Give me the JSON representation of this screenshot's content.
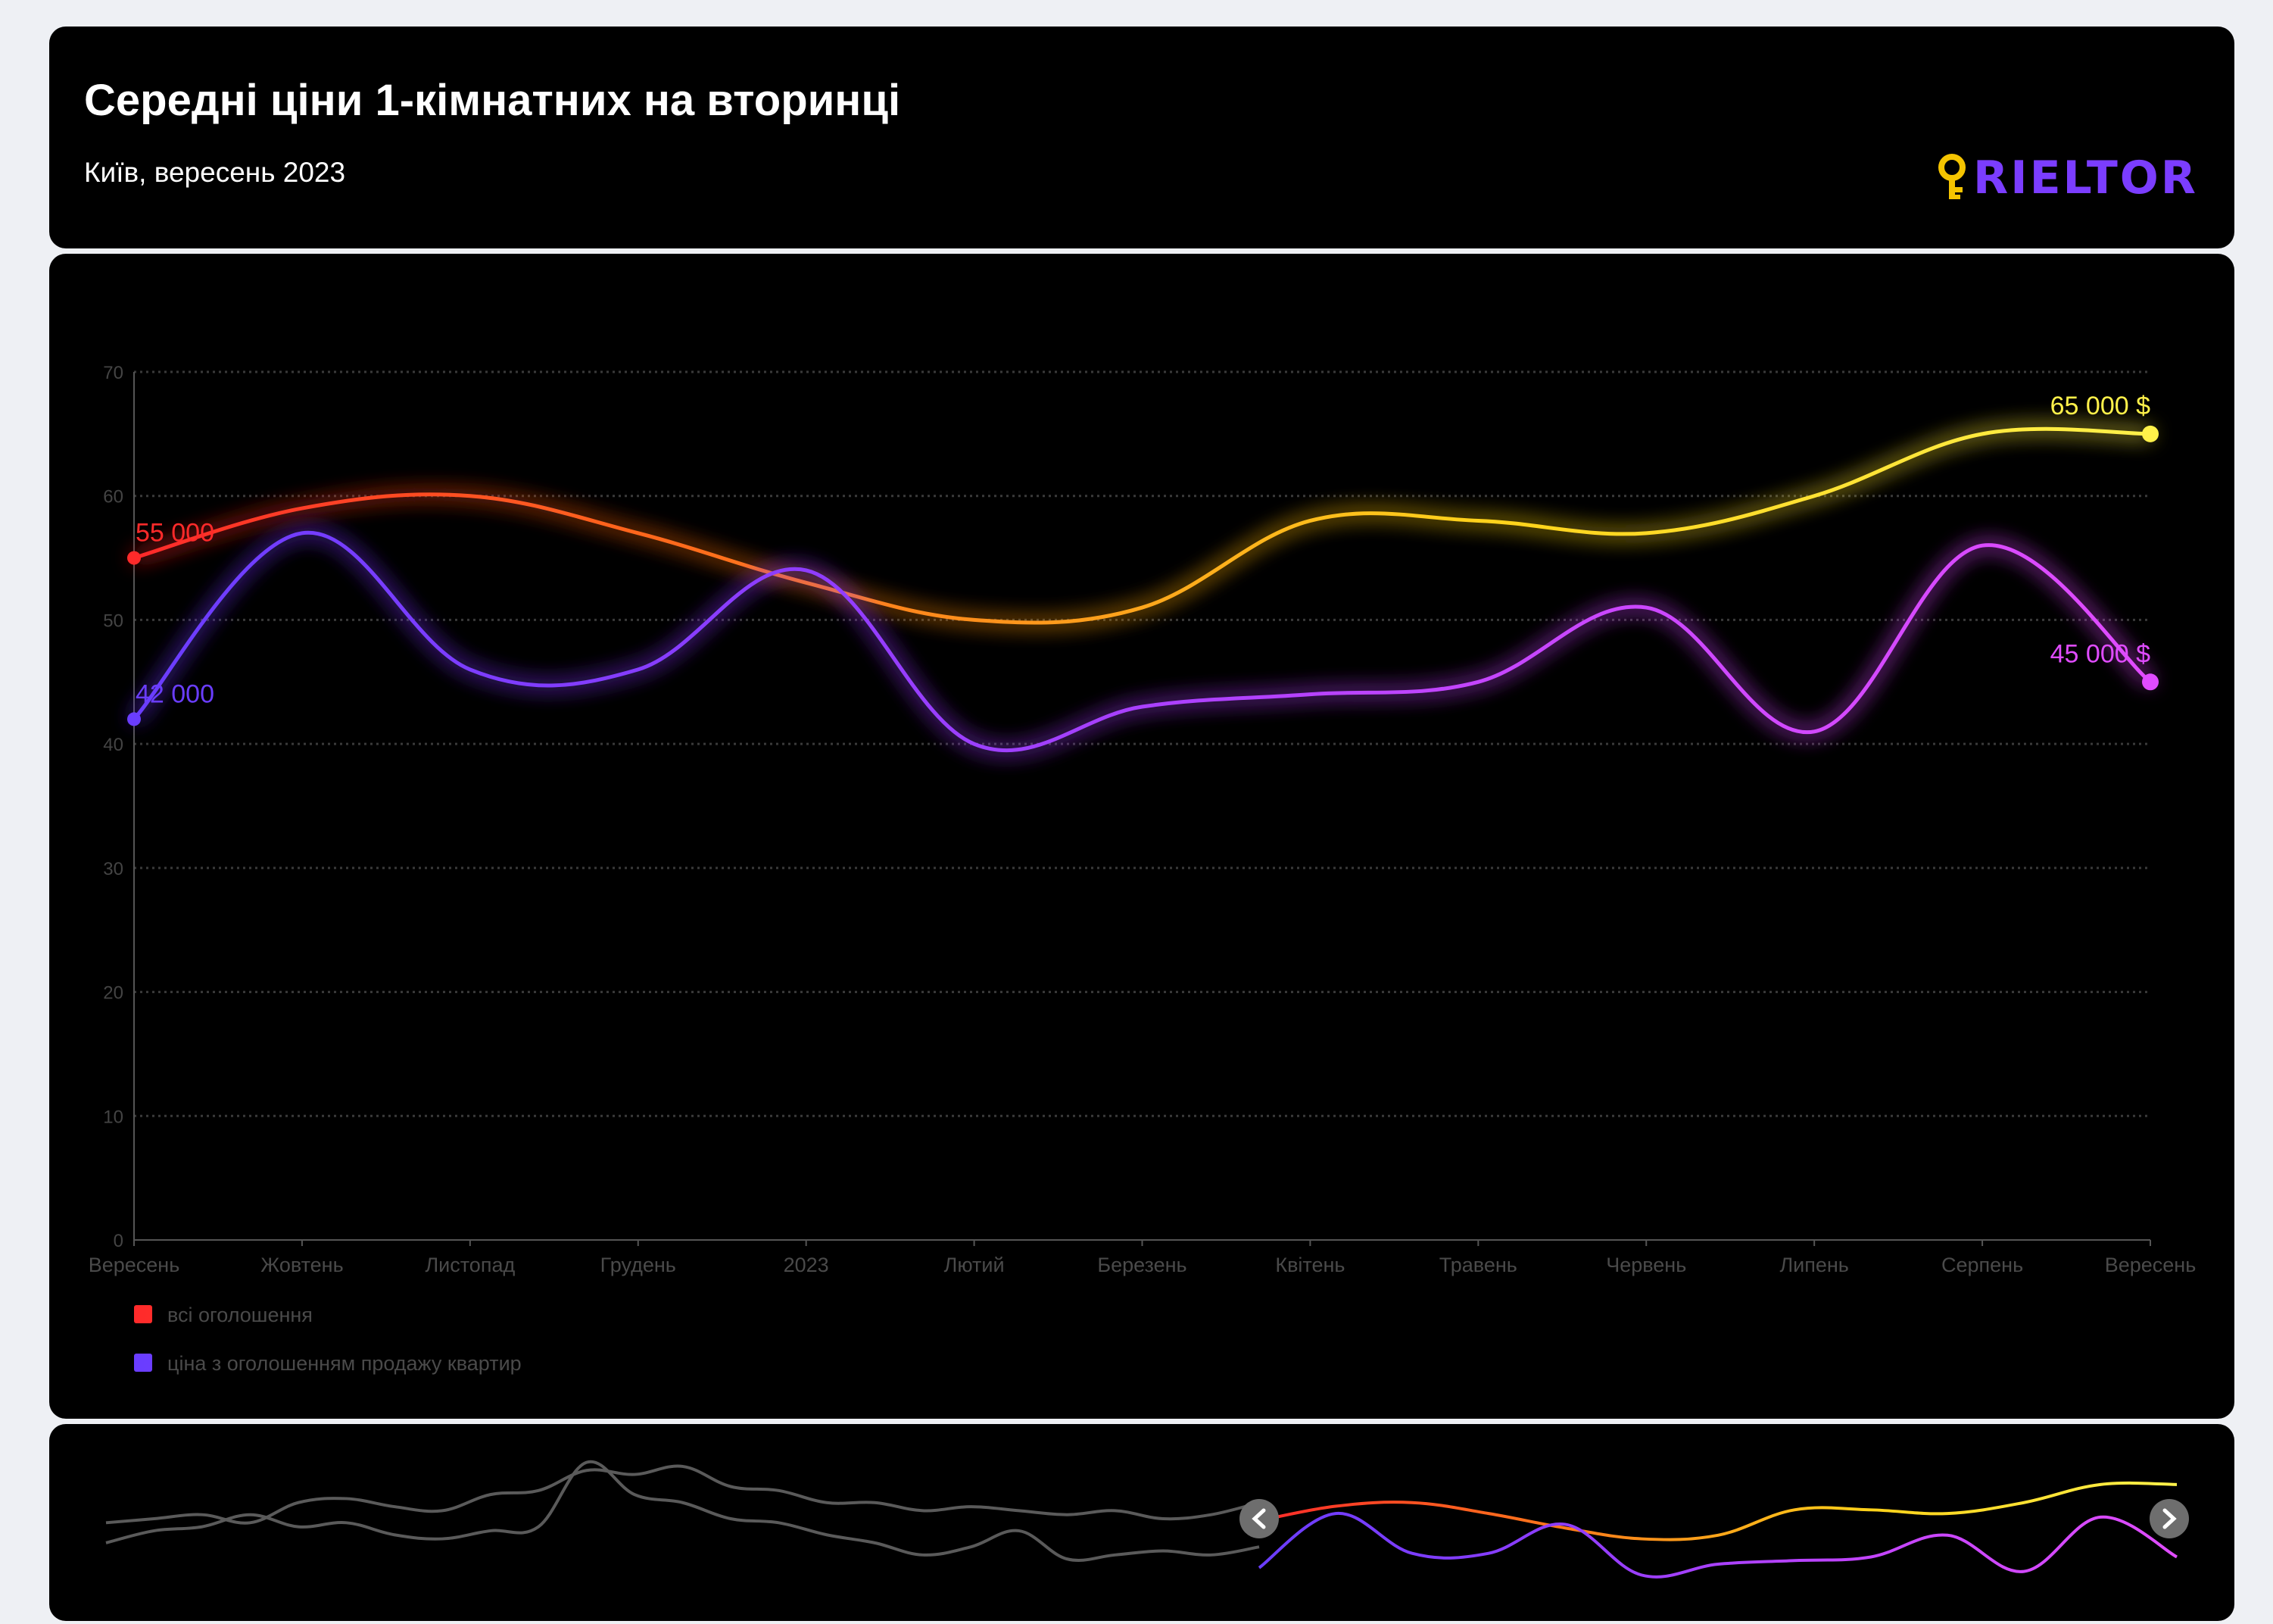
{
  "header": {
    "title": "Середні ціни 1-кімнатних на вторинці",
    "subtitle": "Київ, вересень 2023",
    "logo_text": "RIELTOR",
    "logo_icon": "key-icon",
    "logo_color": "#7b3dff",
    "logo_icon_color": "#f5c400"
  },
  "chart_data": {
    "type": "line",
    "title": "Середні ціни 1-кімнатних на вторинці",
    "subtitle": "Київ, вересень 2023",
    "categories": [
      "Вересень",
      "Жовтень",
      "Листопад",
      "Грудень",
      "2023",
      "Лютий",
      "Березень",
      "Квітень",
      "Травень",
      "Червень",
      "Липень",
      "Серпень",
      "Вересень"
    ],
    "ylim": [
      0,
      70000
    ],
    "yticks": [
      0,
      10000,
      20000,
      30000,
      40000,
      50000,
      60000,
      70000
    ],
    "ytick_labels": [
      "0",
      "10",
      "20",
      "30",
      "40",
      "50",
      "60",
      "70"
    ],
    "grid": true,
    "legend_position": "bottom-left",
    "series": [
      {
        "name": "всі оголошення",
        "values": [
          55000,
          59000,
          60000,
          57000,
          53000,
          50000,
          51000,
          58000,
          58000,
          57000,
          60000,
          65000,
          65000
        ],
        "gradient": [
          "#ff2a2a",
          "#ff7a1a",
          "#ffd21a",
          "#fff14a"
        ],
        "first_label": "55 000",
        "last_label": "65 000 $"
      },
      {
        "name": "ціна з оголошенням продажу квартир",
        "values": [
          42000,
          57000,
          46000,
          46000,
          54000,
          40000,
          43000,
          44000,
          45000,
          51000,
          41000,
          56000,
          45000
        ],
        "gradient": [
          "#6a3dff",
          "#8f3dff",
          "#c445ff",
          "#e04cff"
        ],
        "first_label": "42 000",
        "last_label": "45 000 $"
      }
    ]
  },
  "navigator": {
    "left_handle_icon": "chevron-left-icon",
    "right_handle_icon": "chevron-right-icon",
    "history_a": [
      55000,
      56000,
      57000,
      55000,
      60000,
      61000,
      59000,
      58000,
      62000,
      63000,
      68000,
      67000,
      69000,
      64000,
      63000,
      60000,
      60000,
      58000,
      59000,
      58000,
      57000,
      58000,
      56000,
      57000,
      60000
    ],
    "history_b": [
      50000,
      53000,
      54000,
      57000,
      54000,
      55000,
      52000,
      51000,
      53000,
      54000,
      70000,
      62000,
      60000,
      56000,
      55000,
      52000,
      50000,
      47000,
      49000,
      53000,
      46000,
      47000,
      48000,
      47000,
      49000
    ]
  }
}
